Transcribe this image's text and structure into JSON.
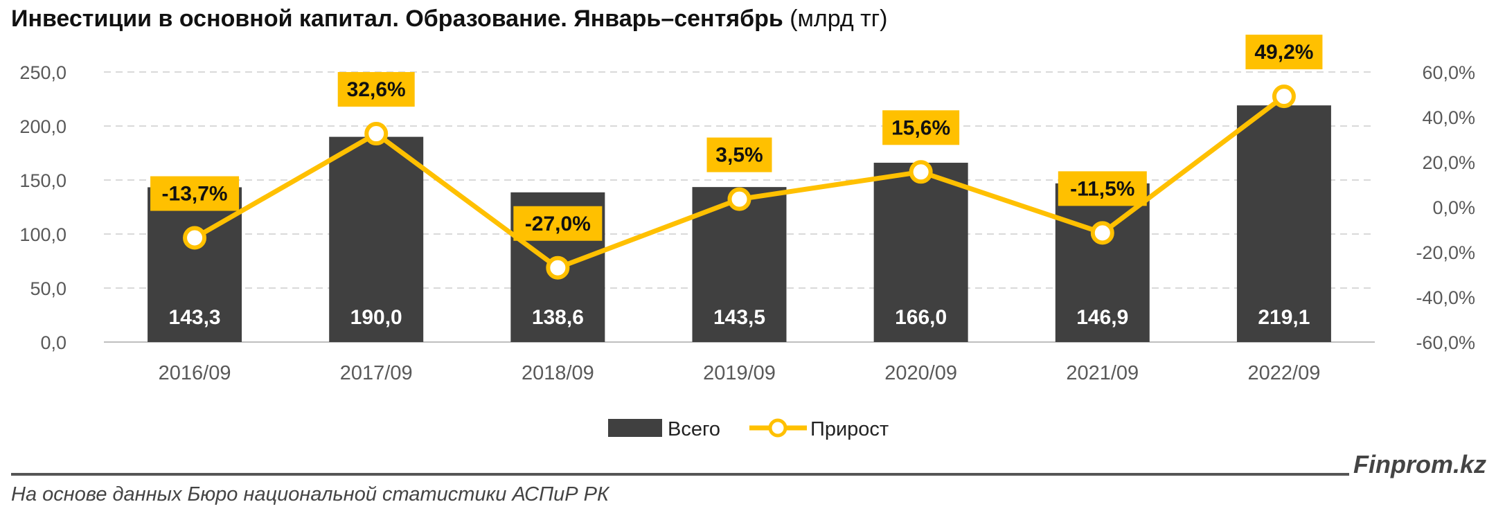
{
  "header": {
    "title_bold": "Инвестиции в основной капитал. Образование. Январь–сентябрь",
    "title_unit": "(млрд тг)"
  },
  "footer": {
    "source": "На основе данных Бюро национальной статистики АСПиР РК",
    "brand": "Finprom.kz"
  },
  "colors": {
    "bar": "#404040",
    "line": "#FFC000",
    "grid": "#d9d9d9",
    "axis_text": "#595959"
  },
  "chart_data": {
    "type": "bar+line",
    "categories": [
      "2016/09",
      "2017/09",
      "2018/09",
      "2019/09",
      "2020/09",
      "2021/09",
      "2022/09"
    ],
    "series": [
      {
        "name": "Всего",
        "type": "bar",
        "axis": "left",
        "values": [
          143.3,
          190.0,
          138.6,
          143.5,
          166.0,
          146.9,
          219.1
        ],
        "labels": [
          "143,3",
          "190,0",
          "138,6",
          "143,5",
          "166,0",
          "146,9",
          "219,1"
        ]
      },
      {
        "name": "Прирост",
        "type": "line",
        "axis": "right",
        "values": [
          -13.7,
          32.6,
          -27.0,
          3.5,
          15.6,
          -11.5,
          49.2
        ],
        "labels": [
          "-13,7%",
          "32,6%",
          "-27,0%",
          "3,5%",
          "15,6%",
          "-11,5%",
          "49,2%"
        ]
      }
    ],
    "y_left": {
      "min": 0,
      "max": 250,
      "ticks": [
        "0,0",
        "50,0",
        "100,0",
        "150,0",
        "200,0",
        "250,0"
      ]
    },
    "y_right": {
      "min": -60,
      "max": 60,
      "ticks": [
        "-60,0%",
        "-40,0%",
        "-20,0%",
        "0,0%",
        "20,0%",
        "40,0%",
        "60,0%"
      ]
    },
    "grid": true,
    "legend": "bottom-center"
  }
}
